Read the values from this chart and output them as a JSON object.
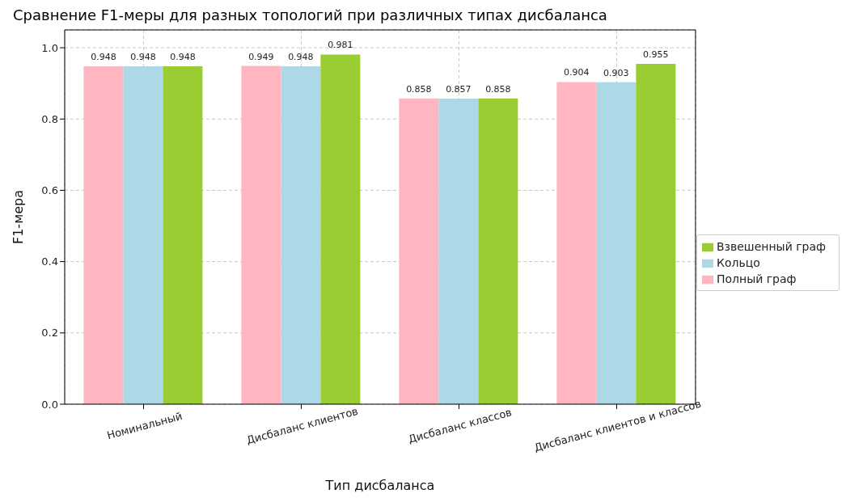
{
  "chart_data": {
    "type": "bar",
    "title": "Сравнение F1-меры для разных топологий при различных типах дисбаланса",
    "xlabel": "Тип дисбаланса",
    "ylabel": "F1-мера",
    "categories": [
      "Номинальный",
      "Дисбаланс клиентов",
      "Дисбаланс классов",
      "Дисбаланс клиентов и классов"
    ],
    "series": [
      {
        "name": "Полный граф",
        "color": "#ffb6c1",
        "values": [
          0.948,
          0.949,
          0.858,
          0.904
        ]
      },
      {
        "name": "Кольцо",
        "color": "#add8e6",
        "values": [
          0.948,
          0.948,
          0.857,
          0.903
        ]
      },
      {
        "name": "Взвешенный граф",
        "color": "#9acd32",
        "values": [
          0.948,
          0.981,
          0.858,
          0.955
        ]
      }
    ],
    "ylim": [
      0,
      1.05
    ],
    "yticks": [
      {
        "value": 0,
        "label": "0.0"
      },
      0.2,
      0.4,
      0.6,
      0.8,
      {
        "value": 1,
        "label": "1.0"
      }
    ],
    "grid": true,
    "legend": "right",
    "data_labels": true
  }
}
